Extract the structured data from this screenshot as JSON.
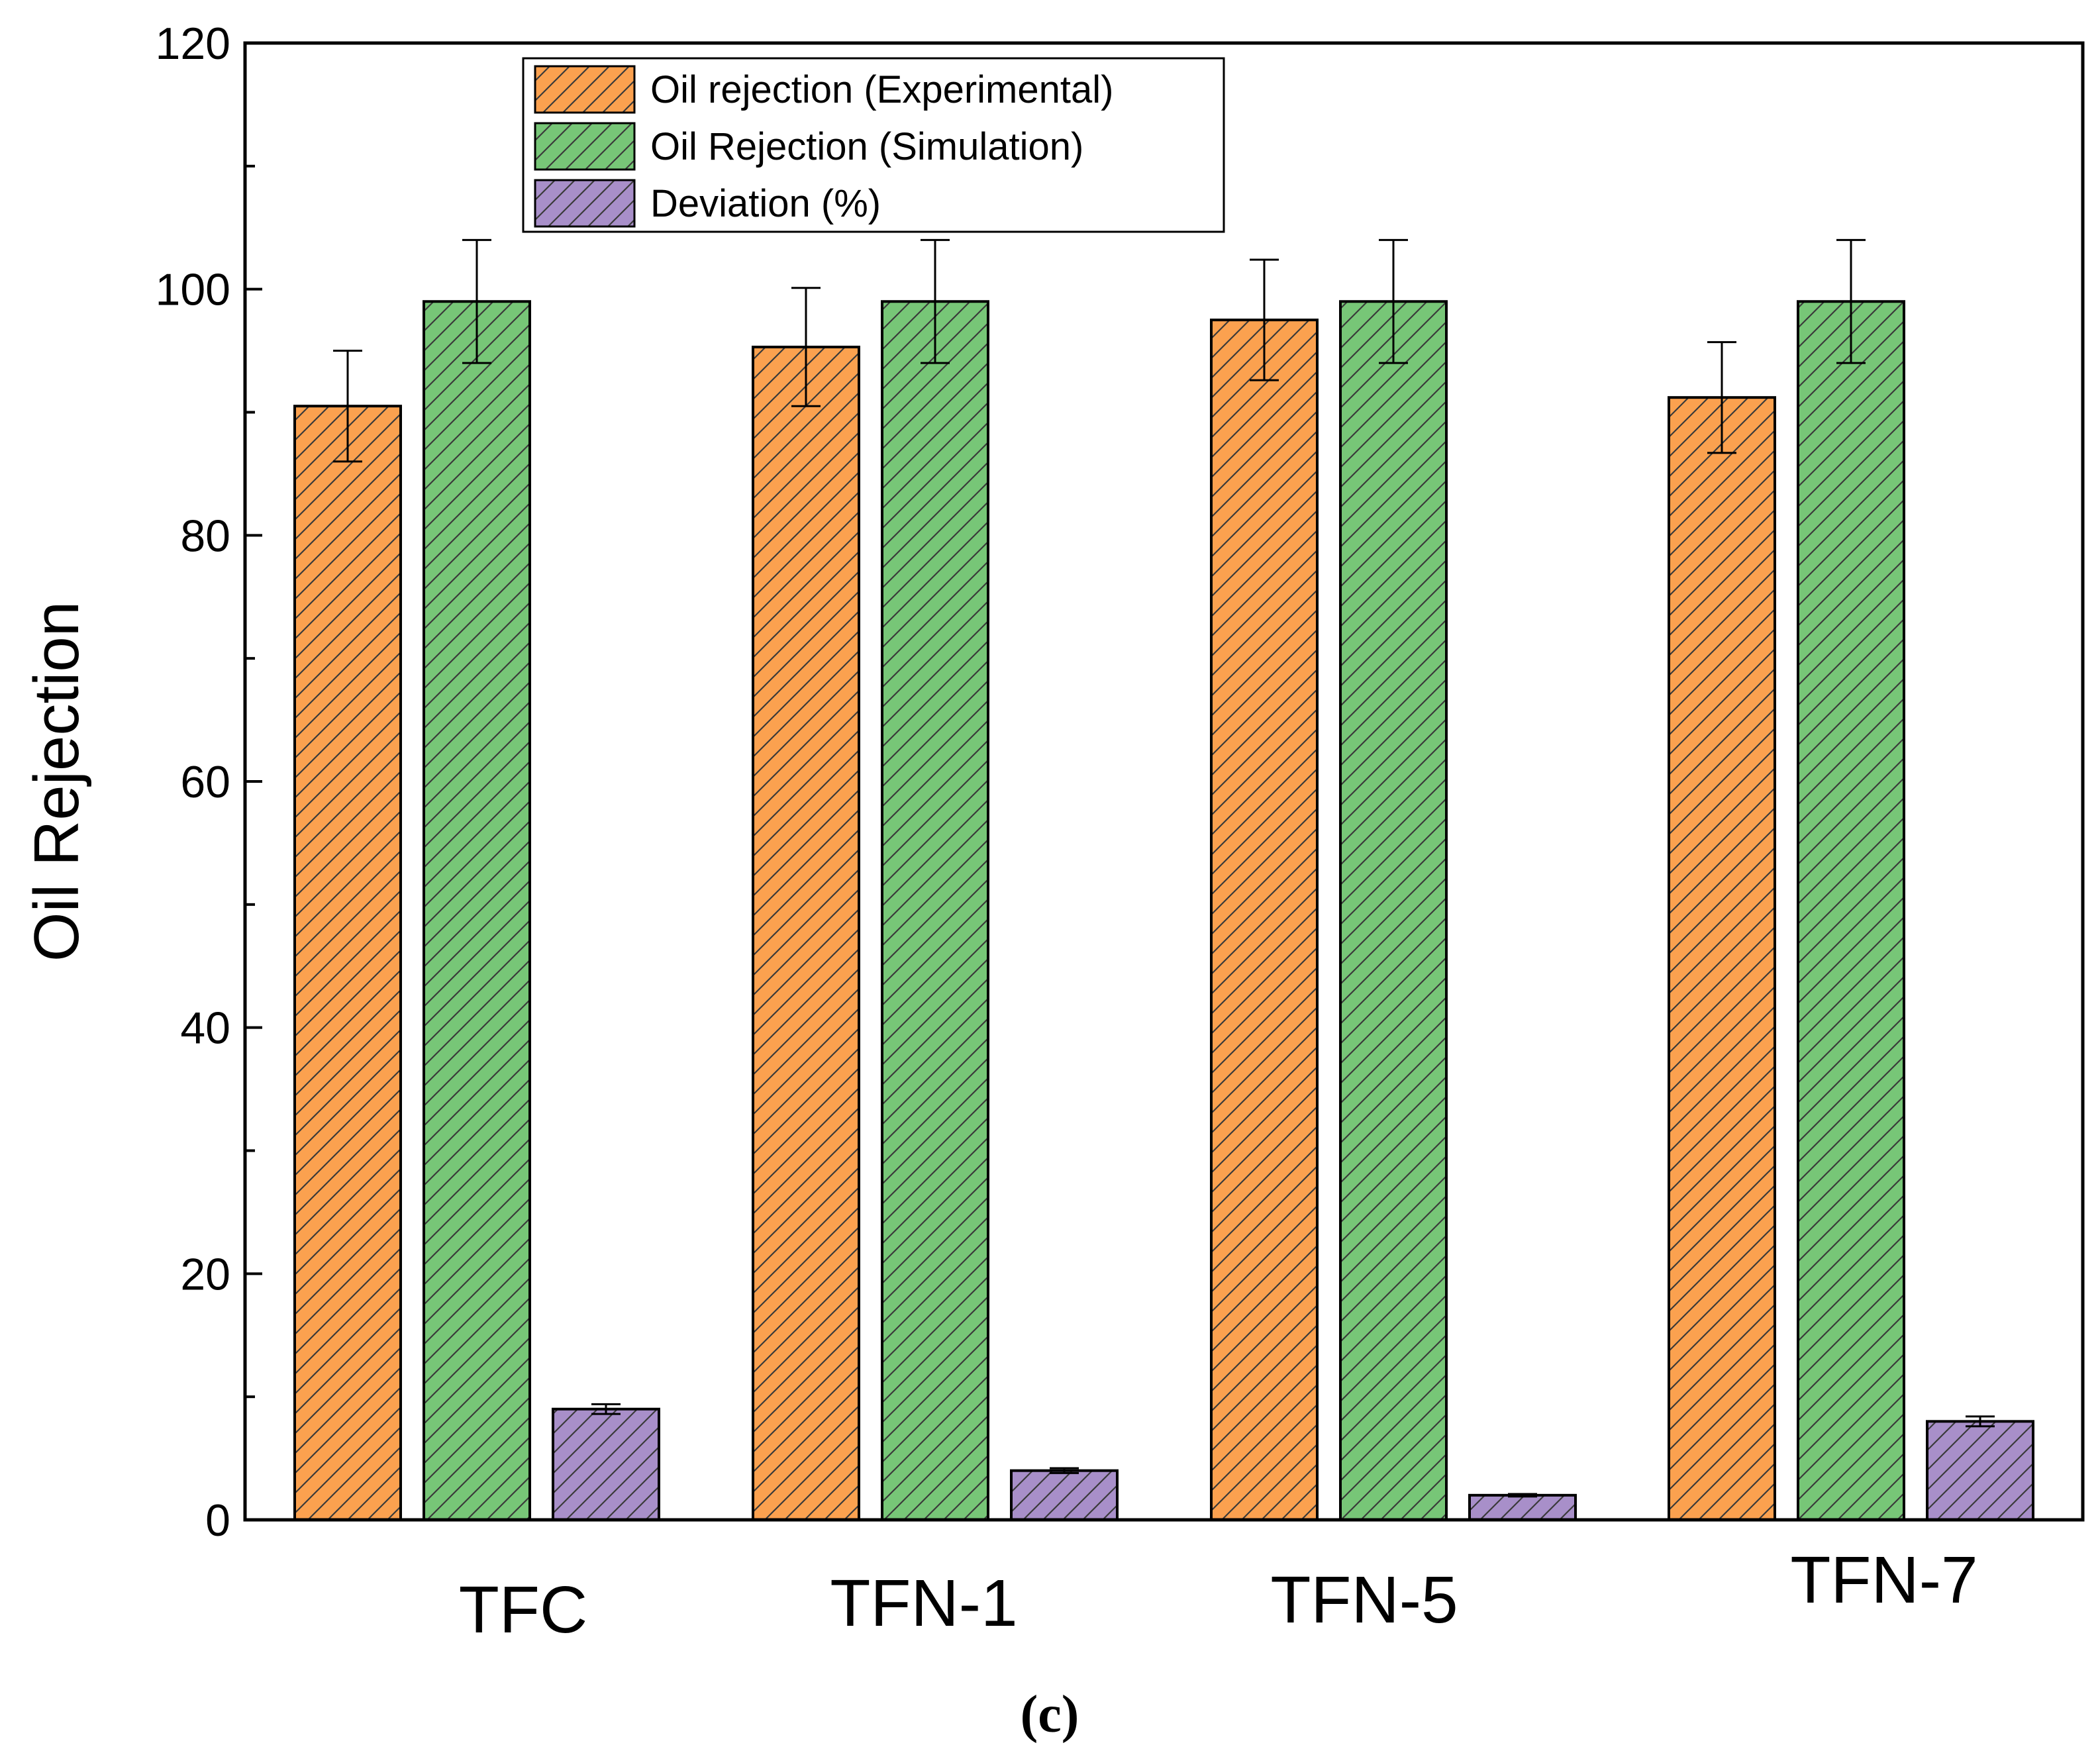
{
  "chart_data": {
    "type": "bar",
    "categories": [
      "TFC",
      "TFN-1",
      "TFN-5",
      "TFN-7"
    ],
    "series": [
      {
        "name": "Oil rejection (Experimental)",
        "color": "#fba14f",
        "values": [
          90.5,
          95.3,
          97.5,
          91.2
        ],
        "errors": [
          4.5,
          4.8,
          4.9,
          4.5
        ]
      },
      {
        "name": "Oil Rejection (Simulation)",
        "color": "#77c677",
        "values": [
          99,
          99,
          99,
          99
        ],
        "errors": [
          5.0,
          5.0,
          5.0,
          5.0
        ]
      },
      {
        "name": "Deviation (%)",
        "color": "#a88fc9",
        "values": [
          9.0,
          4.0,
          2.0,
          8.0
        ],
        "errors": [
          0.4,
          0.2,
          0.1,
          0.4
        ]
      }
    ],
    "title": "",
    "xlabel": "",
    "ylabel": "Oil Rejection",
    "ylim": [
      0,
      120
    ],
    "yticks": [
      0,
      20,
      40,
      60,
      80,
      100,
      120
    ],
    "legend": "top-left",
    "panel_label": "(c)"
  }
}
